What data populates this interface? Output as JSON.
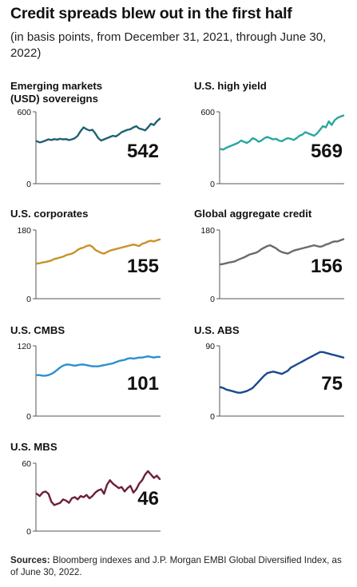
{
  "title": "Credit spreads blew out in the first half",
  "subtitle": "(in basis points, from December 31, 2021, through June 30, 2022)",
  "footer": {
    "sources_label": "Sources:",
    "sources_text": " Bloomberg indexes and J.P. Morgan EMBI Global Diversified Index, as of June 30, 2022."
  },
  "chart_data": [
    {
      "type": "line",
      "title": "Emerging markets (USD) sovereigns",
      "color": "#1f6170",
      "ylim": [
        0,
        600
      ],
      "yticks": [
        "0",
        "600"
      ],
      "last_value": "542",
      "values": [
        355,
        345,
        350,
        360,
        370,
        365,
        372,
        368,
        375,
        370,
        372,
        365,
        370,
        380,
        400,
        440,
        470,
        455,
        445,
        450,
        420,
        380,
        360,
        370,
        380,
        390,
        400,
        395,
        410,
        430,
        440,
        450,
        455,
        470,
        480,
        460,
        455,
        445,
        470,
        500,
        490,
        520,
        542
      ]
    },
    {
      "type": "line",
      "title": "U.S. high yield",
      "color": "#2aa6a0",
      "ylim": [
        0,
        600
      ],
      "yticks": [
        "0",
        "600"
      ],
      "last_value": "569",
      "values": [
        290,
        285,
        300,
        310,
        320,
        330,
        340,
        360,
        350,
        340,
        355,
        380,
        370,
        350,
        360,
        380,
        390,
        380,
        370,
        375,
        360,
        355,
        370,
        380,
        375,
        365,
        380,
        400,
        410,
        430,
        420,
        410,
        400,
        420,
        450,
        480,
        470,
        520,
        490,
        530,
        550,
        560,
        569
      ]
    },
    {
      "type": "line",
      "title": "U.S. corporates",
      "color": "#c8922b",
      "ylim": [
        0,
        180
      ],
      "yticks": [
        "0",
        "180"
      ],
      "last_value": "155",
      "values": [
        92,
        93,
        95,
        96,
        98,
        100,
        104,
        106,
        108,
        110,
        114,
        116,
        118,
        122,
        128,
        132,
        134,
        138,
        140,
        136,
        128,
        124,
        120,
        118,
        122,
        126,
        128,
        130,
        132,
        134,
        136,
        138,
        140,
        142,
        140,
        138,
        144,
        146,
        150,
        152,
        150,
        153,
        155
      ]
    },
    {
      "type": "line",
      "title": "Global aggregate credit",
      "color": "#6b6b6b",
      "ylim": [
        0,
        180
      ],
      "yticks": [
        "0",
        "180"
      ],
      "last_value": "156",
      "values": [
        90,
        91,
        93,
        95,
        96,
        98,
        102,
        105,
        108,
        112,
        116,
        118,
        120,
        124,
        130,
        134,
        138,
        140,
        136,
        132,
        126,
        122,
        120,
        118,
        122,
        126,
        128,
        130,
        132,
        134,
        136,
        138,
        140,
        138,
        136,
        138,
        142,
        144,
        148,
        150,
        150,
        153,
        156
      ]
    },
    {
      "type": "line",
      "title": "U.S. CMBS",
      "color": "#2e8fcf",
      "ylim": [
        0,
        120
      ],
      "yticks": [
        "0",
        "120"
      ],
      "last_value": "101",
      "values": [
        70,
        70,
        69,
        69,
        70,
        72,
        75,
        79,
        83,
        86,
        88,
        88,
        87,
        86,
        87,
        88,
        88,
        87,
        86,
        85,
        85,
        85,
        86,
        87,
        88,
        89,
        90,
        92,
        94,
        95,
        96,
        98,
        99,
        98,
        99,
        100,
        100,
        101,
        102,
        101,
        100,
        101,
        101
      ]
    },
    {
      "type": "line",
      "title": "U.S. ABS",
      "color": "#1a4a8e",
      "ylim": [
        0,
        90
      ],
      "yticks": [
        "0",
        "90"
      ],
      "last_value": "75",
      "values": [
        37,
        36,
        34,
        33,
        32,
        31,
        30,
        30,
        31,
        32,
        34,
        36,
        40,
        44,
        48,
        52,
        55,
        56,
        57,
        56,
        55,
        54,
        56,
        58,
        62,
        64,
        66,
        68,
        70,
        72,
        74,
        76,
        78,
        80,
        82,
        82,
        81,
        80,
        79,
        78,
        77,
        76,
        75
      ]
    },
    {
      "type": "line",
      "title": "U.S. MBS",
      "color": "#6d1f3c",
      "ylim": [
        0,
        60
      ],
      "yticks": [
        "0",
        "60"
      ],
      "last_value": "46",
      "values": [
        33,
        31,
        34,
        35,
        33,
        26,
        23,
        24,
        25,
        28,
        27,
        25,
        29,
        30,
        28,
        31,
        30,
        32,
        29,
        31,
        34,
        36,
        37,
        33,
        41,
        45,
        42,
        40,
        38,
        39,
        35,
        38,
        40,
        34,
        37,
        42,
        45,
        50,
        53,
        50,
        47,
        49,
        46
      ]
    }
  ]
}
